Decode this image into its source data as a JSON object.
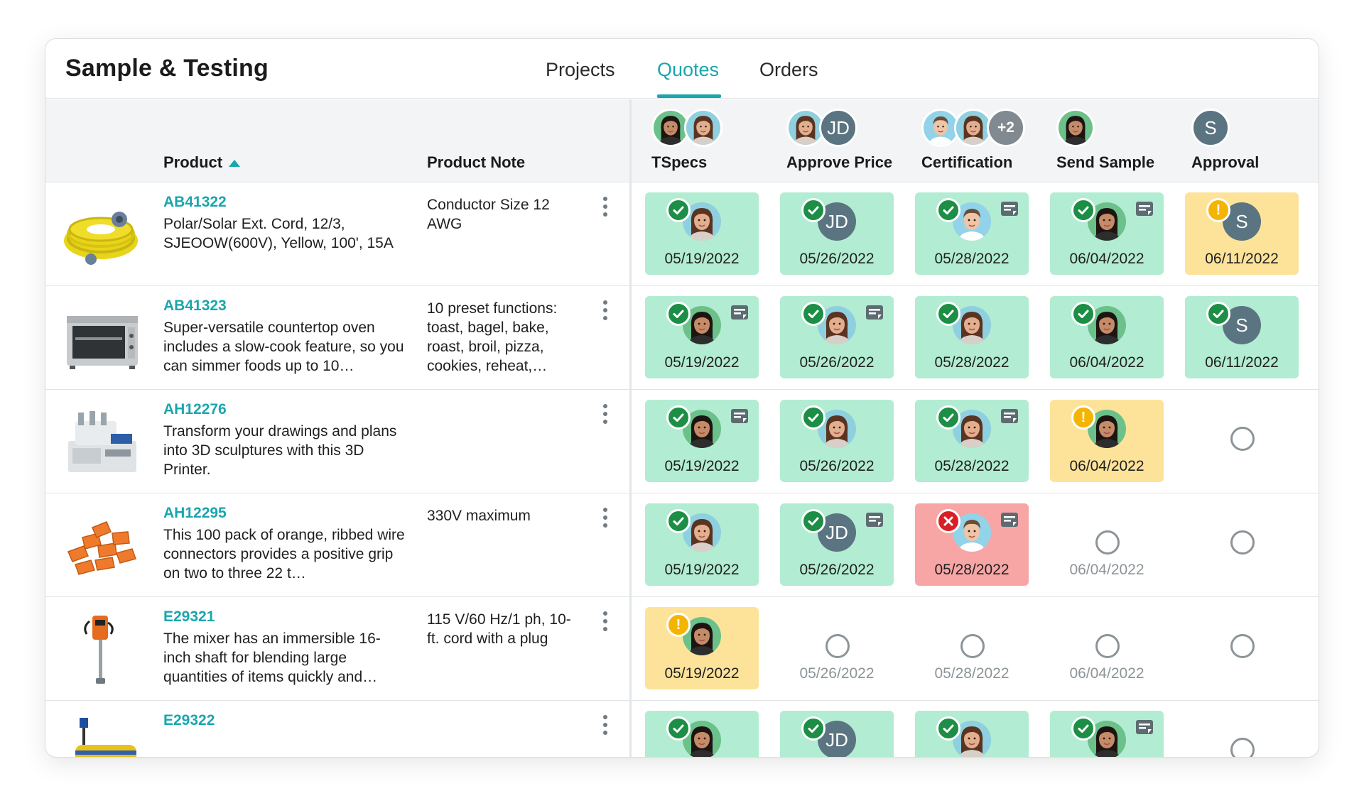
{
  "app": {
    "title": "Sample & Testing"
  },
  "tabs": [
    {
      "label": "Projects",
      "active": false
    },
    {
      "label": "Quotes",
      "active": true
    },
    {
      "label": "Orders",
      "active": false
    }
  ],
  "columns": {
    "product": "Product",
    "product_note": "Product Note",
    "stages": [
      {
        "label": "TSpecs",
        "avatars": [
          "face-a",
          "face-b"
        ]
      },
      {
        "label": "Approve Price",
        "avatars": [
          "face-b",
          "JD"
        ]
      },
      {
        "label": "Certification",
        "avatars": [
          "face-m",
          "face-b",
          "+2"
        ]
      },
      {
        "label": "Send Sample",
        "avatars": [
          "face-a"
        ]
      },
      {
        "label": "Approval",
        "avatars": [
          "S"
        ]
      }
    ]
  },
  "colors": {
    "accent": "#1aa6ad",
    "done": "#b2ecd2",
    "pending": "#fde39a",
    "rejected": "#f7a5a5"
  },
  "rows": [
    {
      "code": "AB41322",
      "description": "Polar/Solar Ext. Cord, 12/3, SJEOOW(600V), Yellow, 100', 15A",
      "note": "Conductor Size 12 AWG",
      "thumb": "extension-cord",
      "cells": [
        {
          "state": "done",
          "status": "ok",
          "avatar": "face-b",
          "note": false,
          "date": "05/19/2022"
        },
        {
          "state": "done",
          "status": "ok",
          "avatar": "JD",
          "note": false,
          "date": "05/26/2022"
        },
        {
          "state": "done",
          "status": "ok",
          "avatar": "face-m",
          "note": true,
          "date": "05/28/2022"
        },
        {
          "state": "done",
          "status": "ok",
          "avatar": "face-a",
          "note": true,
          "date": "06/04/2022"
        },
        {
          "state": "pending",
          "status": "warn",
          "avatar": "S",
          "note": false,
          "date": "06/11/2022"
        }
      ]
    },
    {
      "code": "AB41323",
      "description": "Super-versatile countertop oven includes a slow-cook feature, so you can simmer foods up to 10…",
      "note": "10 preset functions: toast, bagel, bake, roast, broil, pizza, cookies, reheat,…",
      "thumb": "toaster-oven",
      "cells": [
        {
          "state": "done",
          "status": "ok",
          "avatar": "face-a",
          "note": true,
          "date": "05/19/2022"
        },
        {
          "state": "done",
          "status": "ok",
          "avatar": "face-b",
          "note": true,
          "date": "05/26/2022"
        },
        {
          "state": "done",
          "status": "ok",
          "avatar": "face-b",
          "note": false,
          "date": "05/28/2022"
        },
        {
          "state": "done",
          "status": "ok",
          "avatar": "face-a",
          "note": false,
          "date": "06/04/2022"
        },
        {
          "state": "done",
          "status": "ok",
          "avatar": "S",
          "note": false,
          "date": "06/11/2022"
        }
      ]
    },
    {
      "code": "AH12276",
      "description": "Transform your drawings and plans into 3D sculptures with this 3D Printer.",
      "note": "",
      "thumb": "sewing-machine",
      "cells": [
        {
          "state": "done",
          "status": "ok",
          "avatar": "face-a",
          "note": true,
          "date": "05/19/2022"
        },
        {
          "state": "done",
          "status": "ok",
          "avatar": "face-b",
          "note": false,
          "date": "05/26/2022"
        },
        {
          "state": "done",
          "status": "ok",
          "avatar": "face-b",
          "note": true,
          "date": "05/28/2022"
        },
        {
          "state": "pending",
          "status": "warn",
          "avatar": "face-a",
          "note": false,
          "date": "06/04/2022"
        },
        {
          "state": "empty",
          "date": ""
        }
      ]
    },
    {
      "code": "AH12295",
      "description": "This 100 pack of orange, ribbed wire connectors provides a positive grip on two to three 22 t…",
      "note": "330V maximum",
      "thumb": "wire-connectors",
      "cells": [
        {
          "state": "done",
          "status": "ok",
          "avatar": "face-b",
          "note": false,
          "date": "05/19/2022"
        },
        {
          "state": "done",
          "status": "ok",
          "avatar": "JD",
          "note": true,
          "date": "05/26/2022"
        },
        {
          "state": "rejected",
          "status": "fail",
          "avatar": "face-m",
          "note": true,
          "date": "05/28/2022"
        },
        {
          "state": "empty",
          "date": "06/04/2022"
        },
        {
          "state": "empty",
          "date": ""
        }
      ]
    },
    {
      "code": "E29321",
      "description": "The mixer has an immersible 16-inch shaft for blending large quantities of items quickly and…",
      "note": "115 V/60 Hz/1 ph, 10-ft. cord with a plug",
      "thumb": "immersion-mixer",
      "cells": [
        {
          "state": "pending",
          "status": "warn",
          "avatar": "face-a",
          "note": false,
          "date": "05/19/2022"
        },
        {
          "state": "empty",
          "date": "05/26/2022"
        },
        {
          "state": "empty",
          "date": "05/28/2022"
        },
        {
          "state": "empty",
          "date": "06/04/2022"
        },
        {
          "state": "empty",
          "date": ""
        }
      ]
    },
    {
      "code": "E29322",
      "description": "",
      "note": "",
      "thumb": "roller-machine",
      "cells": [
        {
          "state": "done",
          "status": "ok",
          "avatar": "face-a",
          "note": false,
          "date": ""
        },
        {
          "state": "done",
          "status": "ok",
          "avatar": "JD",
          "note": false,
          "date": ""
        },
        {
          "state": "done",
          "status": "ok",
          "avatar": "face-b",
          "note": false,
          "date": ""
        },
        {
          "state": "done",
          "status": "ok",
          "avatar": "face-a",
          "note": true,
          "date": ""
        },
        {
          "state": "empty",
          "date": ""
        }
      ]
    }
  ]
}
